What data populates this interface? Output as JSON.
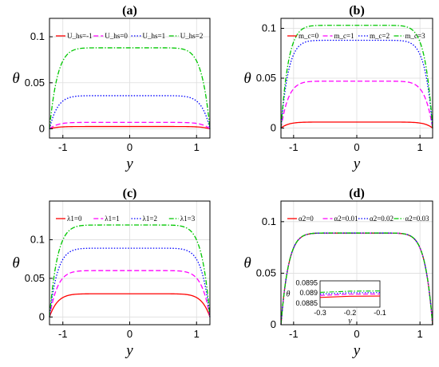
{
  "chart_data": [
    {
      "type": "line",
      "title": "(a)",
      "xlabel": "y",
      "ylabel": "θ",
      "xlim": [
        -1.2,
        1.2
      ],
      "ylim": [
        -0.01,
        0.12
      ],
      "xticks": [
        "-1",
        "0",
        "1"
      ],
      "yticks": [
        "0",
        "0.05",
        "0.1"
      ],
      "grid": true,
      "legend": "top, horizontal",
      "series": [
        {
          "name": "U_hs=-1",
          "color": "#ff0000",
          "dash": "solid",
          "plateau": 0.0025
        },
        {
          "name": "U_hs=0",
          "color": "#ff00ff",
          "dash": "dashed",
          "plateau": 0.007
        },
        {
          "name": "U_hs=1",
          "color": "#0000ff",
          "dash": "dotted",
          "plateau": 0.036
        },
        {
          "name": "U_hs=2",
          "color": "#00c800",
          "dash": "dashdot",
          "plateau": 0.088
        }
      ]
    },
    {
      "type": "line",
      "title": "(b)",
      "xlabel": "y",
      "ylabel": "θ",
      "xlim": [
        -1.2,
        1.2
      ],
      "ylim": [
        -0.01,
        0.11
      ],
      "xticks": [
        "-1",
        "0",
        "1"
      ],
      "yticks": [
        "0",
        "0.05",
        "0.1"
      ],
      "grid": true,
      "legend": "top, horizontal",
      "series": [
        {
          "name": "m_c=0",
          "color": "#ff0000",
          "dash": "solid",
          "plateau": 0.006
        },
        {
          "name": "m_c=1",
          "color": "#ff00ff",
          "dash": "dashed",
          "plateau": 0.047
        },
        {
          "name": "m_c=2",
          "color": "#0000ff",
          "dash": "dotted",
          "plateau": 0.088
        },
        {
          "name": "m_c=3",
          "color": "#00c800",
          "dash": "dashdot",
          "plateau": 0.103
        }
      ]
    },
    {
      "type": "line",
      "title": "(c)",
      "xlabel": "y",
      "ylabel": "θ",
      "xlim": [
        -1.2,
        1.2
      ],
      "ylim": [
        -0.01,
        0.15
      ],
      "xticks": [
        "-1",
        "0",
        "1"
      ],
      "yticks": [
        "0",
        "0.05",
        "0.1"
      ],
      "grid": true,
      "legend": "top, horizontal",
      "series": [
        {
          "name": "λ1=0",
          "color": "#ff0000",
          "dash": "solid",
          "plateau": 0.03
        },
        {
          "name": "λ1=1",
          "color": "#ff00ff",
          "dash": "dashed",
          "plateau": 0.06
        },
        {
          "name": "λ1=2",
          "color": "#0000ff",
          "dash": "dotted",
          "plateau": 0.089
        },
        {
          "name": "λ1=3",
          "color": "#00c800",
          "dash": "dashdot",
          "plateau": 0.119
        }
      ]
    },
    {
      "type": "line",
      "title": "(d)",
      "xlabel": "y",
      "ylabel": "θ",
      "xlim": [
        -1.2,
        1.2
      ],
      "ylim": [
        0,
        0.12
      ],
      "xticks": [
        "-1",
        "0",
        "1"
      ],
      "yticks": [
        "0",
        "0.05",
        "0.1"
      ],
      "grid": true,
      "legend": "top, horizontal",
      "series": [
        {
          "name": "α2=0",
          "color": "#ff0000",
          "dash": "solid",
          "plateau": 0.0889
        },
        {
          "name": "α2=0.01",
          "color": "#ff00ff",
          "dash": "dashed",
          "plateau": 0.0889
        },
        {
          "name": "α2=0.02",
          "color": "#0000ff",
          "dash": "dotted",
          "plateau": 0.089
        },
        {
          "name": "α2=0.03",
          "color": "#00c800",
          "dash": "dashdot",
          "plateau": 0.089
        }
      ],
      "inset": {
        "xlabel": "y",
        "ylabel": "θ",
        "xlim": [
          -0.3,
          -0.1
        ],
        "ylim": [
          0.0883,
          0.0896
        ],
        "xticks": [
          "-0.3",
          "-0.2",
          "-0.1"
        ],
        "yticks": [
          "0.0885",
          "0.089",
          "0.0895"
        ],
        "series": [
          {
            "name": "α2=0",
            "color": "#ff0000",
            "dash": "solid",
            "values": [
              0.08878,
              0.08884,
              0.08885
            ]
          },
          {
            "name": "α2=0.01",
            "color": "#ff00ff",
            "dash": "dashed",
            "values": [
              0.08888,
              0.08894,
              0.08895
            ]
          },
          {
            "name": "α2=0.02",
            "color": "#0000ff",
            "dash": "dotted",
            "values": [
              0.08895,
              0.08901,
              0.08902
            ]
          },
          {
            "name": "α2=0.03",
            "color": "#00c800",
            "dash": "dashdot",
            "values": [
              0.08903,
              0.08909,
              0.0891
            ]
          }
        ]
      }
    }
  ]
}
